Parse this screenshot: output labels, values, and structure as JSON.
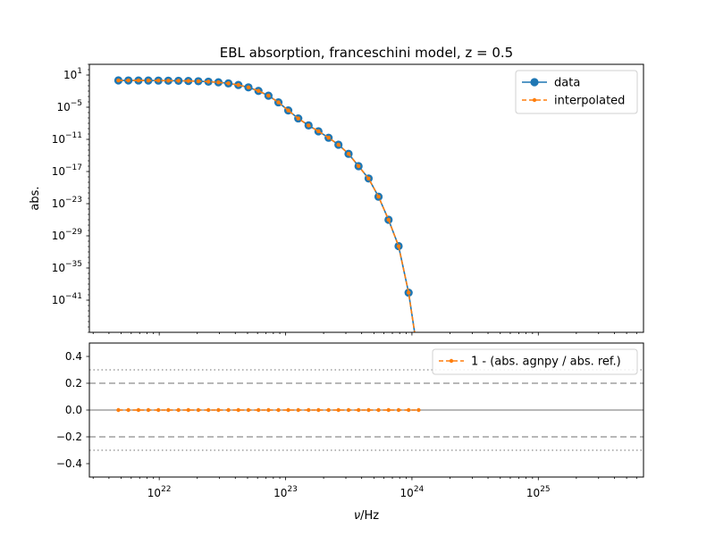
{
  "chart_data": [
    {
      "type": "line",
      "title": "EBL absorption, franceschini model, z = 0.5",
      "xlabel": "",
      "ylabel": "abs.",
      "xscale": "log",
      "yscale": "log",
      "xlim": [
        2.8e+21,
        6.8e+25
      ],
      "ylim": [
        1e-47,
        1000.0
      ],
      "x_ticks": [
        {
          "value": 1e+22,
          "base": "10",
          "exp": "22"
        },
        {
          "value": 1e+23,
          "base": "10",
          "exp": "23"
        },
        {
          "value": 1e+24,
          "base": "10",
          "exp": "24"
        },
        {
          "value": 1e+25,
          "base": "10",
          "exp": "25"
        }
      ],
      "show_x_tick_labels": false,
      "y_ticks": [
        {
          "value": 10.0,
          "base": "10",
          "exp": "1"
        },
        {
          "value": 1e-05,
          "base": "10",
          "exp": "−5"
        },
        {
          "value": 1e-11,
          "base": "10",
          "exp": "−11"
        },
        {
          "value": 1e-17,
          "base": "10",
          "exp": "−17"
        },
        {
          "value": 1e-23,
          "base": "10",
          "exp": "−23"
        },
        {
          "value": 1e-29,
          "base": "10",
          "exp": "−29"
        },
        {
          "value": 1e-35,
          "base": "10",
          "exp": "−35"
        },
        {
          "value": 1e-41,
          "base": "10",
          "exp": "−41"
        }
      ],
      "legend": {
        "position": "upper right",
        "entries": [
          "data",
          "interpolated"
        ]
      },
      "series": [
        {
          "name": "data",
          "style": "solid-line-circle",
          "color": "#1f77b4",
          "points": [
            [
              4.75e+21,
              0.99
            ],
            [
              5.7e+21,
              0.98
            ],
            [
              6.85e+21,
              0.97
            ],
            [
              8.2e+21,
              0.95
            ],
            [
              9.85e+21,
              0.93
            ],
            [
              1.18e+22,
              0.89
            ],
            [
              1.42e+22,
              0.85
            ],
            [
              1.7e+22,
              0.79
            ],
            [
              2.04e+22,
              0.7
            ],
            [
              2.45e+22,
              0.58
            ],
            [
              2.94e+22,
              0.44
            ],
            [
              3.53e+22,
              0.28
            ],
            [
              4.23e+22,
              0.14
            ],
            [
              5.08e+22,
              0.05
            ],
            [
              6.1e+22,
              0.011
            ],
            [
              7.32e+22,
              0.0014
            ],
            [
              8.78e+22,
              8e-05
            ],
            [
              1.05e+23,
              2.5e-06
            ],
            [
              1.26e+23,
              8e-08
            ],
            [
              1.52e+23,
              4e-09
            ],
            [
              1.82e+23,
              3.2e-10
            ],
            [
              2.19e+23,
              2e-11
            ],
            [
              2.62e+23,
              1e-12
            ],
            [
              3.15e+23,
              2e-14
            ],
            [
              3.78e+23,
              1e-16
            ],
            [
              4.54e+23,
              5e-19
            ],
            [
              5.44e+23,
              2e-22
            ],
            [
              6.53e+23,
              1e-26
            ],
            [
              7.84e+23,
              1.2e-31
            ],
            [
              9.41e+23,
              2.5e-40
            ],
            [
              1.13e+24,
              1e-52
            ]
          ]
        },
        {
          "name": "interpolated",
          "style": "dashed-line-small-dot",
          "color": "#ff7f0e",
          "points": [
            [
              4.75e+21,
              0.99
            ],
            [
              5.7e+21,
              0.98
            ],
            [
              6.85e+21,
              0.97
            ],
            [
              8.2e+21,
              0.95
            ],
            [
              9.85e+21,
              0.93
            ],
            [
              1.18e+22,
              0.89
            ],
            [
              1.42e+22,
              0.85
            ],
            [
              1.7e+22,
              0.79
            ],
            [
              2.04e+22,
              0.7
            ],
            [
              2.45e+22,
              0.58
            ],
            [
              2.94e+22,
              0.44
            ],
            [
              3.53e+22,
              0.28
            ],
            [
              4.23e+22,
              0.14
            ],
            [
              5.08e+22,
              0.05
            ],
            [
              6.1e+22,
              0.011
            ],
            [
              7.32e+22,
              0.0014
            ],
            [
              8.78e+22,
              8e-05
            ],
            [
              1.05e+23,
              2.5e-06
            ],
            [
              1.26e+23,
              8e-08
            ],
            [
              1.52e+23,
              4e-09
            ],
            [
              1.82e+23,
              3.2e-10
            ],
            [
              2.19e+23,
              2e-11
            ],
            [
              2.62e+23,
              1e-12
            ],
            [
              3.15e+23,
              2e-14
            ],
            [
              3.78e+23,
              1e-16
            ],
            [
              4.54e+23,
              5e-19
            ],
            [
              5.44e+23,
              2e-22
            ],
            [
              6.53e+23,
              1e-26
            ],
            [
              7.84e+23,
              1.2e-31
            ],
            [
              9.41e+23,
              2.5e-40
            ],
            [
              1.13e+24,
              1e-52
            ]
          ]
        }
      ]
    },
    {
      "type": "line",
      "title": "",
      "xlabel": "ν / Hz",
      "ylabel": "",
      "xscale": "log",
      "yscale": "linear",
      "xlim": [
        2.8e+21,
        6.8e+25
      ],
      "ylim": [
        -0.5,
        0.5
      ],
      "x_ticks": [
        {
          "value": 1e+22,
          "base": "10",
          "exp": "22"
        },
        {
          "value": 1e+23,
          "base": "10",
          "exp": "23"
        },
        {
          "value": 1e+24,
          "base": "10",
          "exp": "24"
        },
        {
          "value": 1e+25,
          "base": "10",
          "exp": "25"
        }
      ],
      "show_x_tick_labels": true,
      "y_ticks": [
        {
          "value": 0.4,
          "label": "0.4"
        },
        {
          "value": 0.2,
          "label": "0.2"
        },
        {
          "value": 0.0,
          "label": "0.0"
        },
        {
          "value": -0.2,
          "label": "−0.2"
        },
        {
          "value": -0.4,
          "label": "−0.4"
        }
      ],
      "reference_lines": [
        {
          "y": 0.0,
          "style": "solid",
          "color": "#a0a0a0"
        },
        {
          "y": 0.2,
          "style": "dashed",
          "color": "#a0a0a0"
        },
        {
          "y": -0.2,
          "style": "dashed",
          "color": "#a0a0a0"
        },
        {
          "y": 0.3,
          "style": "dotted",
          "color": "#a0a0a0"
        },
        {
          "y": -0.3,
          "style": "dotted",
          "color": "#a0a0a0"
        }
      ],
      "legend": {
        "position": "upper right",
        "entries": [
          "1 - (abs. agnpy / abs. ref.)"
        ]
      },
      "series": [
        {
          "name": "1 - (abs. agnpy / abs. ref.)",
          "style": "dashed-line-small-dot",
          "color": "#ff7f0e",
          "x": [
            4.75e+21,
            5.7e+21,
            6.85e+21,
            8.2e+21,
            9.85e+21,
            1.18e+22,
            1.42e+22,
            1.7e+22,
            2.04e+22,
            2.45e+22,
            2.94e+22,
            3.53e+22,
            4.23e+22,
            5.08e+22,
            6.1e+22,
            7.32e+22,
            8.78e+22,
            1.05e+23,
            1.26e+23,
            1.52e+23,
            1.82e+23,
            2.19e+23,
            2.62e+23,
            3.15e+23,
            3.78e+23,
            4.54e+23,
            5.44e+23,
            6.53e+23,
            7.84e+23,
            9.41e+23,
            1.13e+24
          ],
          "y": [
            0,
            0,
            0,
            0,
            0,
            0,
            0,
            0,
            0,
            0,
            0,
            0,
            0,
            0,
            0,
            0,
            0,
            0,
            0,
            0,
            0,
            0,
            0,
            0,
            0,
            0,
            0,
            0,
            0,
            0,
            0
          ]
        }
      ]
    }
  ]
}
